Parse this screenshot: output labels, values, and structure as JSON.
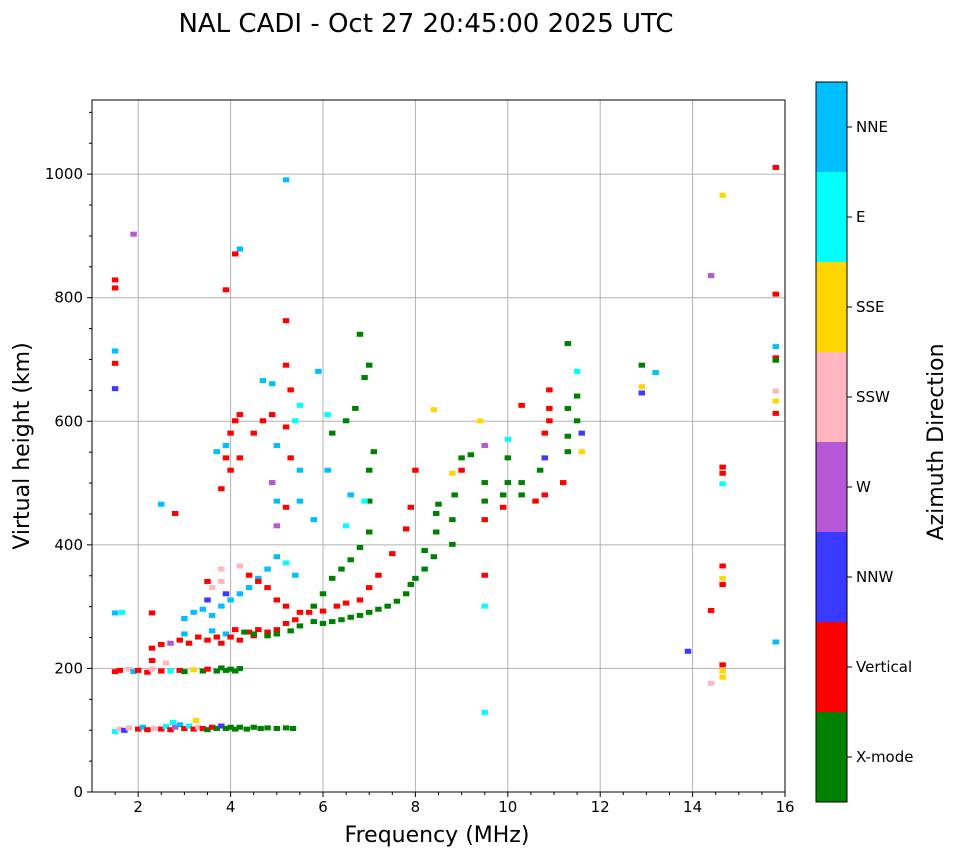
{
  "chart_data": {
    "type": "scatter",
    "title": "NAL CADI - Oct 27 20:45:00 2025 UTC",
    "xlabel": "Frequency (MHz)",
    "ylabel": "Virtual height (km)",
    "xlim": [
      1,
      16
    ],
    "ylim": [
      0,
      1120
    ],
    "xticks": [
      2,
      4,
      6,
      8,
      10,
      12,
      14,
      16
    ],
    "yticks": [
      0,
      200,
      400,
      600,
      800,
      1000
    ],
    "grid": true,
    "colorbar": {
      "label": "Azimuth Direction",
      "categories": [
        "X-mode",
        "Vertical",
        "NNW",
        "W",
        "SSW",
        "SSE",
        "E",
        "NNE"
      ],
      "colors": [
        "#008000",
        "#ff0000",
        "#3a3aff",
        "#b657d6",
        "#ffb6c1",
        "#ffd700",
        "#00ffff",
        "#00bfff"
      ]
    },
    "point_format": [
      "frequency_mhz",
      "height_km",
      "category_index"
    ],
    "points": [
      [
        1.5,
        97,
        6
      ],
      [
        1.6,
        101,
        4
      ],
      [
        1.7,
        99,
        2
      ],
      [
        1.8,
        103,
        4
      ],
      [
        2.0,
        101,
        1
      ],
      [
        2.1,
        104,
        7
      ],
      [
        2.2,
        100,
        1
      ],
      [
        2.35,
        102,
        4
      ],
      [
        2.5,
        101,
        1
      ],
      [
        2.6,
        105,
        6
      ],
      [
        2.7,
        100,
        1
      ],
      [
        2.8,
        104,
        3
      ],
      [
        2.9,
        108,
        7
      ],
      [
        3.0,
        102,
        1
      ],
      [
        3.1,
        106,
        6
      ],
      [
        3.2,
        101,
        1
      ],
      [
        3.3,
        104,
        4
      ],
      [
        3.4,
        102,
        1
      ],
      [
        3.5,
        100,
        0
      ],
      [
        3.6,
        104,
        1
      ],
      [
        3.7,
        102,
        0
      ],
      [
        3.8,
        106,
        2
      ],
      [
        3.9,
        102,
        0
      ],
      [
        4.0,
        104,
        0
      ],
      [
        4.1,
        101,
        0
      ],
      [
        4.2,
        104,
        0
      ],
      [
        4.35,
        101,
        0
      ],
      [
        4.5,
        104,
        0
      ],
      [
        4.65,
        102,
        0
      ],
      [
        4.8,
        103,
        0
      ],
      [
        5.0,
        102,
        0
      ],
      [
        5.2,
        103,
        0
      ],
      [
        5.35,
        102,
        0
      ],
      [
        3.25,
        115,
        5
      ],
      [
        2.75,
        112,
        6
      ],
      [
        1.5,
        194,
        1
      ],
      [
        1.6,
        196,
        1
      ],
      [
        1.8,
        198,
        4
      ],
      [
        1.9,
        194,
        7
      ],
      [
        2.0,
        196,
        1
      ],
      [
        2.2,
        193,
        1
      ],
      [
        2.3,
        198,
        4
      ],
      [
        2.5,
        195,
        1
      ],
      [
        2.7,
        195,
        6
      ],
      [
        2.9,
        196,
        1
      ],
      [
        3.0,
        194,
        0
      ],
      [
        3.2,
        197,
        5
      ],
      [
        3.4,
        195,
        0
      ],
      [
        3.5,
        198,
        1
      ],
      [
        3.7,
        195,
        0
      ],
      [
        3.8,
        200,
        0
      ],
      [
        3.9,
        196,
        0
      ],
      [
        4.0,
        198,
        0
      ],
      [
        4.1,
        195,
        0
      ],
      [
        4.2,
        199,
        0
      ],
      [
        2.3,
        212,
        1
      ],
      [
        2.6,
        208,
        4
      ],
      [
        2.3,
        232,
        1
      ],
      [
        2.5,
        238,
        1
      ],
      [
        2.7,
        240,
        3
      ],
      [
        2.9,
        245,
        1
      ],
      [
        3.0,
        255,
        7
      ],
      [
        3.1,
        240,
        1
      ],
      [
        3.3,
        250,
        1
      ],
      [
        3.5,
        245,
        1
      ],
      [
        3.6,
        260,
        7
      ],
      [
        3.7,
        250,
        1
      ],
      [
        3.8,
        240,
        1
      ],
      [
        3.9,
        255,
        7
      ],
      [
        4.0,
        250,
        1
      ],
      [
        4.1,
        262,
        1
      ],
      [
        4.2,
        245,
        1
      ],
      [
        4.4,
        258,
        1
      ],
      [
        4.5,
        252,
        1
      ],
      [
        4.6,
        262,
        1
      ],
      [
        4.8,
        258,
        1
      ],
      [
        5.0,
        262,
        1
      ],
      [
        5.2,
        272,
        1
      ],
      [
        5.4,
        278,
        1
      ],
      [
        5.5,
        290,
        1
      ],
      [
        5.7,
        290,
        1
      ],
      [
        6.0,
        292,
        1
      ],
      [
        6.3,
        300,
        1
      ],
      [
        6.5,
        305,
        1
      ],
      [
        6.8,
        310,
        1
      ],
      [
        7.0,
        330,
        1
      ],
      [
        7.2,
        350,
        1
      ],
      [
        7.5,
        385,
        1
      ],
      [
        7.8,
        425,
        1
      ],
      [
        7.9,
        460,
        1
      ],
      [
        8.0,
        520,
        1
      ],
      [
        3.0,
        280,
        7
      ],
      [
        3.2,
        290,
        7
      ],
      [
        3.4,
        295,
        7
      ],
      [
        3.6,
        285,
        7
      ],
      [
        3.8,
        300,
        7
      ],
      [
        4.0,
        310,
        7
      ],
      [
        4.2,
        320,
        7
      ],
      [
        4.4,
        330,
        7
      ],
      [
        4.6,
        345,
        7
      ],
      [
        4.8,
        360,
        7
      ],
      [
        5.0,
        380,
        7
      ],
      [
        5.2,
        370,
        6
      ],
      [
        5.4,
        350,
        7
      ],
      [
        3.6,
        330,
        4
      ],
      [
        3.8,
        340,
        4
      ],
      [
        4.2,
        365,
        4
      ],
      [
        4.4,
        350,
        1
      ],
      [
        4.6,
        340,
        1
      ],
      [
        4.8,
        330,
        1
      ],
      [
        5.0,
        310,
        1
      ],
      [
        5.2,
        300,
        1
      ],
      [
        3.9,
        320,
        2
      ],
      [
        3.5,
        310,
        2
      ],
      [
        4.3,
        258,
        0
      ],
      [
        4.5,
        255,
        0
      ],
      [
        4.8,
        252,
        0
      ],
      [
        5.0,
        255,
        0
      ],
      [
        5.3,
        260,
        0
      ],
      [
        5.5,
        268,
        0
      ],
      [
        5.8,
        275,
        0
      ],
      [
        6.0,
        272,
        0
      ],
      [
        6.2,
        275,
        0
      ],
      [
        6.4,
        278,
        0
      ],
      [
        6.6,
        282,
        0
      ],
      [
        6.8,
        285,
        0
      ],
      [
        7.0,
        290,
        0
      ],
      [
        7.2,
        295,
        0
      ],
      [
        7.4,
        300,
        0
      ],
      [
        7.6,
        308,
        0
      ],
      [
        7.8,
        320,
        0
      ],
      [
        7.9,
        335,
        0
      ],
      [
        8.0,
        345,
        0
      ],
      [
        8.2,
        360,
        0
      ],
      [
        8.4,
        380,
        0
      ],
      [
        8.45,
        420,
        0
      ],
      [
        8.45,
        450,
        0
      ],
      [
        8.5,
        465,
        0
      ],
      [
        8.8,
        400,
        0
      ],
      [
        8.8,
        440,
        0
      ],
      [
        8.85,
        480,
        0
      ],
      [
        9.0,
        540,
        0
      ],
      [
        8.2,
        390,
        0
      ],
      [
        5.8,
        300,
        0
      ],
      [
        6.0,
        320,
        0
      ],
      [
        6.2,
        345,
        0
      ],
      [
        6.4,
        360,
        0
      ],
      [
        6.6,
        375,
        0
      ],
      [
        6.8,
        395,
        0
      ],
      [
        7.0,
        420,
        0
      ],
      [
        7.0,
        470,
        0
      ],
      [
        7.0,
        520,
        0
      ],
      [
        7.1,
        550,
        0
      ],
      [
        6.7,
        620,
        0
      ],
      [
        6.9,
        670,
        0
      ],
      [
        6.8,
        740,
        0
      ],
      [
        7.0,
        690,
        0
      ],
      [
        6.5,
        600,
        0
      ],
      [
        6.2,
        580,
        0
      ],
      [
        9.5,
        470,
        0
      ],
      [
        9.5,
        500,
        0
      ],
      [
        9.5,
        440,
        1
      ],
      [
        9.9,
        460,
        1
      ],
      [
        9.9,
        480,
        0
      ],
      [
        10.0,
        500,
        0
      ],
      [
        10.0,
        540,
        0
      ],
      [
        10.3,
        480,
        0
      ],
      [
        10.3,
        500,
        0
      ],
      [
        10.3,
        625,
        1
      ],
      [
        10.7,
        520,
        0
      ],
      [
        10.8,
        480,
        1
      ],
      [
        10.8,
        540,
        2
      ],
      [
        10.8,
        580,
        1
      ],
      [
        10.9,
        600,
        1
      ],
      [
        10.9,
        620,
        1
      ],
      [
        10.9,
        650,
        1
      ],
      [
        10.6,
        470,
        1
      ],
      [
        11.2,
        500,
        1
      ],
      [
        11.3,
        550,
        0
      ],
      [
        11.3,
        575,
        0
      ],
      [
        11.3,
        620,
        0
      ],
      [
        11.5,
        600,
        0
      ],
      [
        11.5,
        640,
        0
      ],
      [
        11.5,
        680,
        6
      ],
      [
        11.6,
        580,
        2
      ],
      [
        11.6,
        550,
        5
      ],
      [
        11.3,
        725,
        0
      ],
      [
        9.5,
        560,
        3
      ],
      [
        9.2,
        545,
        0
      ],
      [
        9.4,
        600,
        5
      ],
      [
        8.4,
        618,
        5
      ],
      [
        9.5,
        128,
        6
      ],
      [
        9.5,
        300,
        6
      ],
      [
        9.5,
        350,
        1
      ],
      [
        10.0,
        570,
        6
      ],
      [
        9.0,
        520,
        1
      ],
      [
        8.8,
        515,
        5
      ],
      [
        3.7,
        550,
        7
      ],
      [
        3.9,
        560,
        7
      ],
      [
        4.0,
        580,
        1
      ],
      [
        4.1,
        600,
        1
      ],
      [
        4.2,
        610,
        1
      ],
      [
        3.9,
        540,
        1
      ],
      [
        4.0,
        520,
        1
      ],
      [
        4.2,
        540,
        1
      ],
      [
        3.8,
        490,
        1
      ],
      [
        4.5,
        580,
        1
      ],
      [
        4.7,
        600,
        1
      ],
      [
        4.9,
        610,
        1
      ],
      [
        5.2,
        590,
        1
      ],
      [
        5.4,
        600,
        6
      ],
      [
        4.7,
        665,
        7
      ],
      [
        4.9,
        660,
        7
      ],
      [
        5.2,
        690,
        1
      ],
      [
        5.3,
        650,
        1
      ],
      [
        5.5,
        625,
        6
      ],
      [
        5.0,
        560,
        7
      ],
      [
        5.3,
        540,
        1
      ],
      [
        5.5,
        520,
        7
      ],
      [
        4.9,
        500,
        3
      ],
      [
        5.0,
        470,
        7
      ],
      [
        5.2,
        460,
        1
      ],
      [
        5.0,
        430,
        3
      ],
      [
        5.5,
        470,
        7
      ],
      [
        5.8,
        440,
        7
      ],
      [
        5.9,
        680,
        7
      ],
      [
        6.1,
        520,
        7
      ],
      [
        6.6,
        480,
        7
      ],
      [
        6.5,
        430,
        6
      ],
      [
        6.9,
        470,
        6
      ],
      [
        6.1,
        610,
        6
      ],
      [
        5.2,
        762,
        1
      ],
      [
        5.2,
        990,
        7
      ],
      [
        4.2,
        878,
        7
      ],
      [
        4.1,
        870,
        1
      ],
      [
        3.9,
        812,
        1
      ],
      [
        2.5,
        465,
        7
      ],
      [
        2.8,
        450,
        1
      ],
      [
        1.9,
        902,
        3
      ],
      [
        1.5,
        828,
        1
      ],
      [
        1.5,
        815,
        1
      ],
      [
        1.5,
        713,
        7
      ],
      [
        1.5,
        693,
        1
      ],
      [
        1.5,
        652,
        2
      ],
      [
        1.5,
        289,
        7
      ],
      [
        1.65,
        290,
        6
      ],
      [
        2.3,
        289,
        1
      ],
      [
        3.5,
        340,
        1
      ],
      [
        3.8,
        360,
        4
      ],
      [
        12.9,
        690,
        0
      ],
      [
        12.9,
        655,
        5
      ],
      [
        12.9,
        645,
        2
      ],
      [
        13.2,
        678,
        7
      ],
      [
        13.9,
        227,
        2
      ],
      [
        14.4,
        835,
        3
      ],
      [
        14.4,
        293,
        1
      ],
      [
        14.4,
        175,
        4
      ],
      [
        14.65,
        965,
        5
      ],
      [
        14.65,
        525,
        1
      ],
      [
        14.65,
        515,
        1
      ],
      [
        14.65,
        498,
        6
      ],
      [
        14.65,
        365,
        1
      ],
      [
        14.65,
        345,
        5
      ],
      [
        14.65,
        335,
        1
      ],
      [
        14.65,
        205,
        1
      ],
      [
        14.65,
        195,
        5
      ],
      [
        14.65,
        185,
        5
      ],
      [
        15.8,
        1010,
        1
      ],
      [
        15.8,
        805,
        1
      ],
      [
        15.8,
        720,
        7
      ],
      [
        15.8,
        702,
        1
      ],
      [
        15.8,
        698,
        0
      ],
      [
        15.8,
        648,
        4
      ],
      [
        15.8,
        632,
        5
      ],
      [
        15.8,
        612,
        1
      ],
      [
        15.8,
        242,
        7
      ]
    ]
  }
}
